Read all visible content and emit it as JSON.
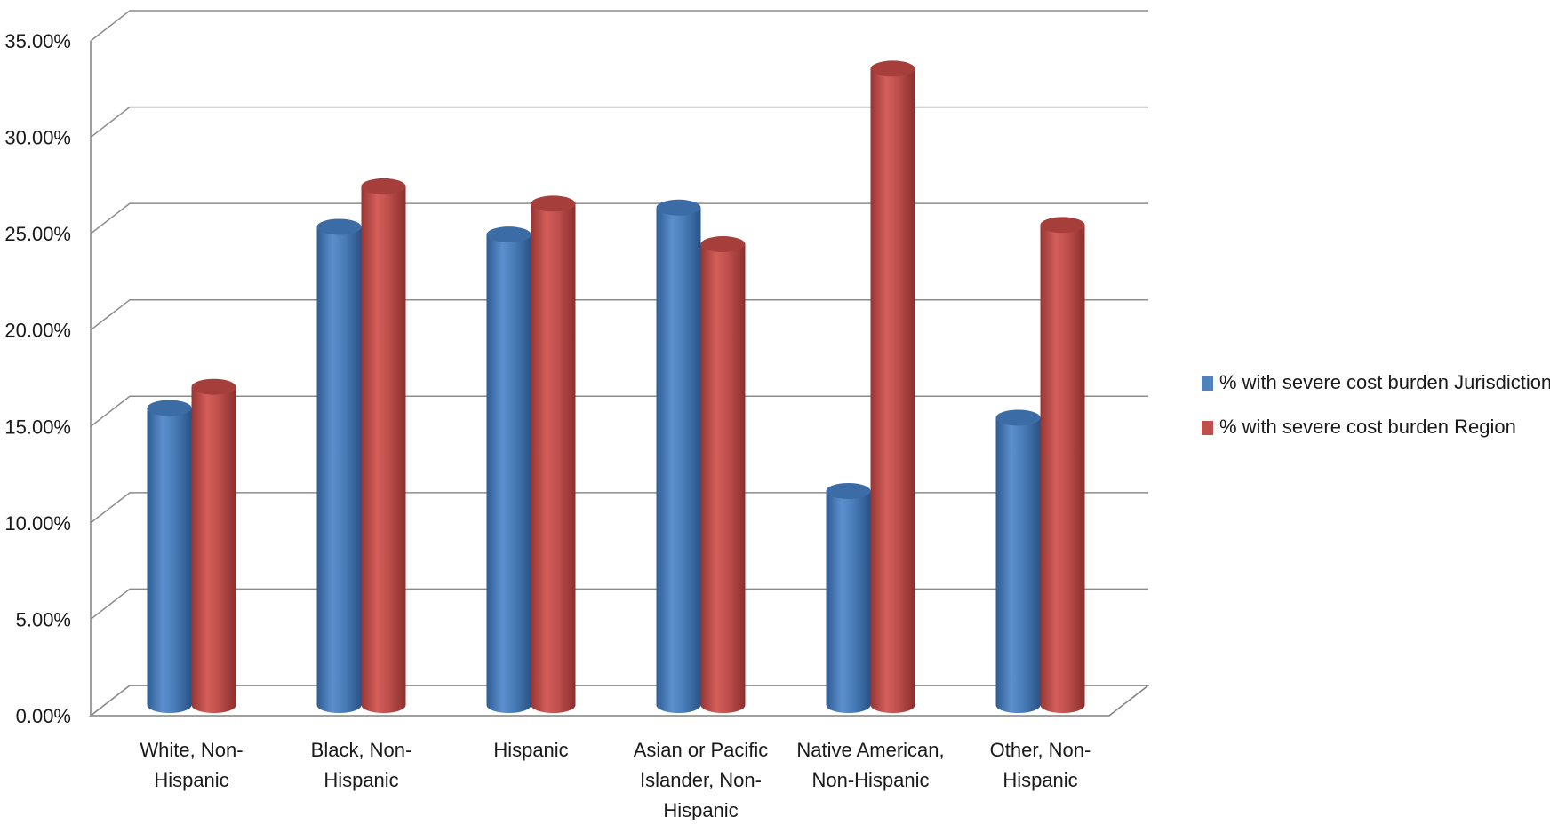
{
  "chart_data": {
    "type": "bar",
    "title": "",
    "xlabel": "",
    "ylabel": "",
    "ylim": [
      0,
      0.35
    ],
    "y_ticks": [
      "0.00%",
      "5.00%",
      "10.00%",
      "15.00%",
      "20.00%",
      "25.00%",
      "30.00%",
      "35.00%"
    ],
    "y_tick_values": [
      0,
      0.05,
      0.1,
      0.15,
      0.2,
      0.25,
      0.3,
      0.35
    ],
    "grid": true,
    "legend_position": "right",
    "categories": [
      [
        "White, Non-",
        "Hispanic"
      ],
      [
        "Black, Non-",
        "Hispanic"
      ],
      [
        "Hispanic"
      ],
      [
        "Asian or Pacific",
        "Islander, Non-",
        "Hispanic"
      ],
      [
        "Native American,",
        "Non-Hispanic"
      ],
      [
        "Other, Non-",
        "Hispanic"
      ]
    ],
    "series": [
      {
        "name": "% with severe cost burden Jurisdiction",
        "color": "#4F81BD",
        "values": [
          0.154,
          0.248,
          0.244,
          0.258,
          0.111,
          0.149
        ]
      },
      {
        "name": "% with severe cost burden Region",
        "color": "#C0504D",
        "values": [
          0.165,
          0.269,
          0.26,
          0.239,
          0.33,
          0.249
        ]
      }
    ]
  }
}
